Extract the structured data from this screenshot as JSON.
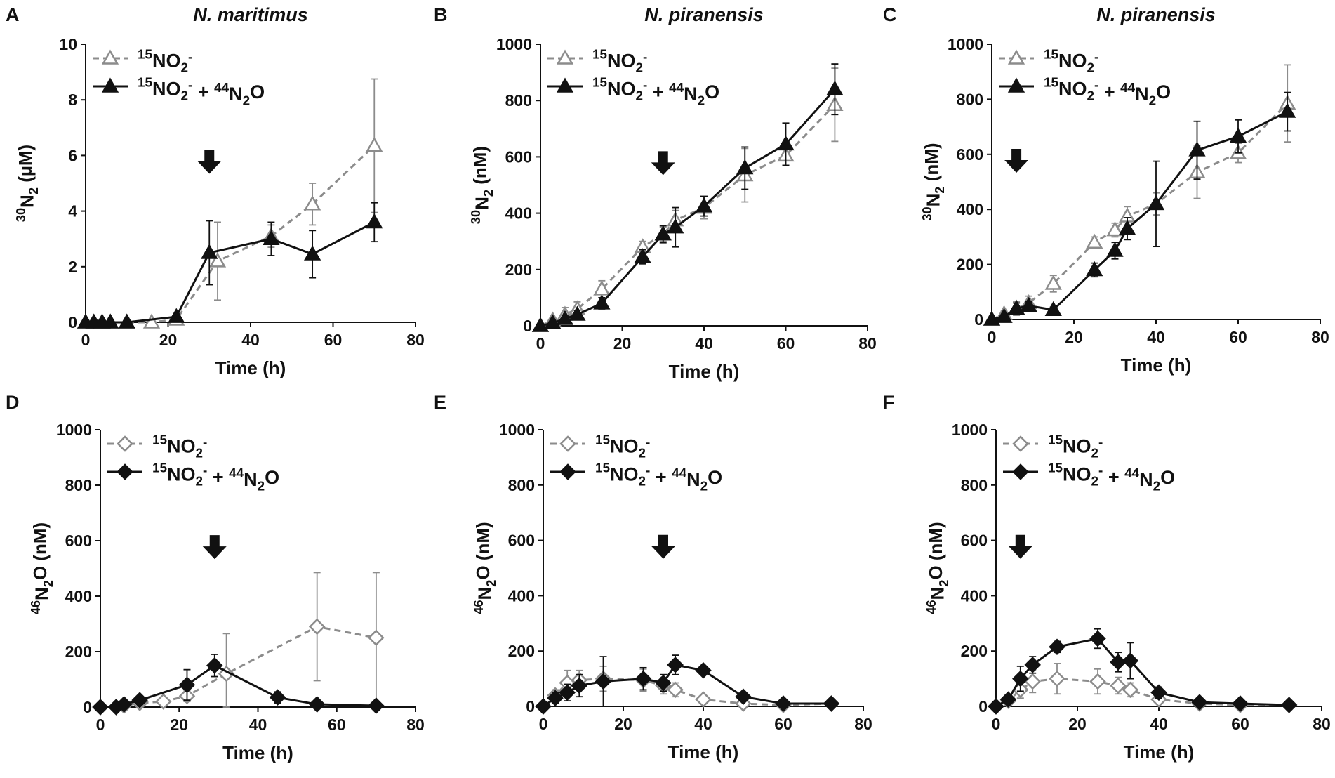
{
  "colors": {
    "control_series": "#8c8c8c",
    "treatment_series": "#111111",
    "axis": "#111111",
    "background": "#ffffff"
  },
  "legend_labels": {
    "control": "15NO2-",
    "treatment": "15NO2- + 44N2O"
  },
  "chart_data": [
    {
      "panel": "A",
      "title": "N. maritimus",
      "type": "line",
      "xlabel": "Time (h)",
      "ylabel": "30N2 (µM)",
      "xlim": [
        0,
        80
      ],
      "ylim": [
        0,
        10
      ],
      "xticks": [
        0,
        20,
        40,
        60,
        80
      ],
      "yticks": [
        0,
        2,
        4,
        6,
        8,
        10
      ],
      "marker": "triangle",
      "arrow_at": 30,
      "series": [
        {
          "name": "15NO2-",
          "x": [
            0,
            2,
            4,
            6,
            10,
            16,
            22,
            32,
            45,
            55,
            70
          ],
          "y": [
            0,
            0,
            0,
            0,
            0,
            0,
            0.1,
            2.2,
            3.1,
            4.25,
            6.35
          ],
          "err": [
            0,
            0,
            0,
            0,
            0,
            0.05,
            0.1,
            1.4,
            0.4,
            0.75,
            2.4
          ]
        },
        {
          "name": "15NO2- + 44N2O",
          "x": [
            0,
            2,
            4,
            6,
            10,
            22,
            30,
            45,
            55,
            70
          ],
          "y": [
            0,
            0,
            0,
            0,
            0,
            0.2,
            2.5,
            3.0,
            2.45,
            3.6
          ],
          "err": [
            0,
            0,
            0,
            0,
            0,
            0.1,
            1.15,
            0.6,
            0.85,
            0.7
          ]
        }
      ]
    },
    {
      "panel": "B",
      "title": "N. piranensis",
      "type": "line",
      "xlabel": "Time (h)",
      "ylabel": "30N2 (nM)",
      "xlim": [
        0,
        80
      ],
      "ylim": [
        0,
        1000
      ],
      "xticks": [
        0,
        20,
        40,
        60,
        80
      ],
      "yticks": [
        0,
        200,
        400,
        600,
        800,
        1000
      ],
      "marker": "triangle",
      "arrow_at": 30,
      "series": [
        {
          "name": "15NO2-",
          "x": [
            0,
            3,
            6,
            9,
            15,
            25,
            30,
            33,
            40,
            50,
            60,
            72
          ],
          "y": [
            0,
            20,
            40,
            60,
            130,
            280,
            325,
            375,
            420,
            535,
            605,
            785
          ],
          "err": [
            0,
            10,
            25,
            25,
            30,
            20,
            25,
            35,
            40,
            95,
            35,
            130
          ]
        },
        {
          "name": "15NO2- + 44N2O",
          "x": [
            0,
            3,
            6,
            9,
            15,
            25,
            30,
            33,
            40,
            50,
            60,
            72
          ],
          "y": [
            0,
            10,
            25,
            40,
            80,
            245,
            325,
            350,
            425,
            560,
            645,
            840
          ],
          "err": [
            0,
            5,
            10,
            15,
            20,
            25,
            30,
            70,
            35,
            75,
            75,
            90
          ]
        }
      ]
    },
    {
      "panel": "C",
      "title": "N. piranensis",
      "type": "line",
      "xlabel": "Time (h)",
      "ylabel": "30N2 (nM)",
      "xlim": [
        0,
        80
      ],
      "ylim": [
        0,
        1000
      ],
      "xticks": [
        0,
        20,
        40,
        60,
        80
      ],
      "yticks": [
        0,
        200,
        400,
        600,
        800,
        1000
      ],
      "marker": "triangle",
      "arrow_at": 6,
      "series": [
        {
          "name": "15NO2-",
          "x": [
            0,
            3,
            6,
            9,
            15,
            25,
            30,
            33,
            40,
            50,
            60,
            72
          ],
          "y": [
            0,
            20,
            40,
            60,
            130,
            280,
            325,
            375,
            420,
            535,
            605,
            785
          ],
          "err": [
            0,
            10,
            25,
            25,
            30,
            20,
            25,
            35,
            40,
            95,
            35,
            140
          ]
        },
        {
          "name": "15NO2- + 44N2O",
          "x": [
            0,
            3,
            6,
            9,
            15,
            25,
            30,
            33,
            40,
            50,
            60,
            72
          ],
          "y": [
            0,
            10,
            40,
            50,
            35,
            180,
            250,
            330,
            420,
            615,
            665,
            755
          ],
          "err": [
            0,
            5,
            20,
            15,
            10,
            25,
            30,
            40,
            155,
            105,
            60,
            70
          ]
        }
      ]
    },
    {
      "panel": "D",
      "title": "",
      "type": "line",
      "xlabel": "Time (h)",
      "ylabel": "46N2O (nM)",
      "xlim": [
        0,
        80
      ],
      "ylim": [
        0,
        1000
      ],
      "xticks": [
        0,
        20,
        40,
        60,
        80
      ],
      "yticks": [
        0,
        200,
        400,
        600,
        800,
        1000
      ],
      "marker": "diamond",
      "arrow_at": 29,
      "series": [
        {
          "name": "15NO2-",
          "x": [
            0,
            4,
            6,
            10,
            16,
            22,
            32,
            55,
            70
          ],
          "y": [
            0,
            0,
            5,
            15,
            20,
            40,
            120,
            290,
            250
          ],
          "err": [
            0,
            0,
            0,
            0,
            5,
            20,
            145,
            195,
            235
          ]
        },
        {
          "name": "15NO2- + 44N2O",
          "x": [
            0,
            4,
            6,
            10,
            22,
            29,
            45,
            55,
            70
          ],
          "y": [
            0,
            0,
            10,
            25,
            80,
            150,
            35,
            10,
            5
          ],
          "err": [
            0,
            0,
            0,
            5,
            55,
            40,
            20,
            5,
            0
          ]
        }
      ]
    },
    {
      "panel": "E",
      "title": "",
      "type": "line",
      "xlabel": "Time (h)",
      "ylabel": "46N2O (nM)",
      "xlim": [
        0,
        80
      ],
      "ylim": [
        0,
        1000
      ],
      "xticks": [
        0,
        20,
        40,
        60,
        80
      ],
      "yticks": [
        0,
        200,
        400,
        600,
        800,
        1000
      ],
      "marker": "diamond",
      "arrow_at": 30,
      "series": [
        {
          "name": "15NO2-",
          "x": [
            0,
            3,
            6,
            9,
            15,
            25,
            30,
            33,
            40,
            50,
            60,
            72
          ],
          "y": [
            0,
            40,
            85,
            95,
            100,
            95,
            75,
            60,
            25,
            10,
            5,
            10
          ],
          "err": [
            0,
            20,
            45,
            35,
            45,
            40,
            30,
            25,
            10,
            5,
            0,
            0
          ]
        },
        {
          "name": "15NO2- + 44N2O",
          "x": [
            0,
            3,
            6,
            9,
            15,
            25,
            30,
            33,
            40,
            50,
            60,
            72
          ],
          "y": [
            0,
            30,
            50,
            75,
            90,
            100,
            85,
            150,
            130,
            35,
            10,
            10
          ],
          "err": [
            0,
            20,
            30,
            40,
            90,
            40,
            30,
            35,
            15,
            15,
            5,
            5
          ]
        }
      ]
    },
    {
      "panel": "F",
      "title": "",
      "type": "line",
      "xlabel": "Time (h)",
      "ylabel": "46N2O (nM)",
      "xlim": [
        0,
        80
      ],
      "ylim": [
        0,
        1000
      ],
      "xticks": [
        0,
        20,
        40,
        60,
        80
      ],
      "yticks": [
        0,
        200,
        400,
        600,
        800,
        1000
      ],
      "marker": "diamond",
      "arrow_at": 6,
      "series": [
        {
          "name": "15NO2-",
          "x": [
            0,
            3,
            6,
            9,
            15,
            25,
            30,
            33,
            40,
            50,
            60,
            72
          ],
          "y": [
            0,
            20,
            60,
            90,
            100,
            90,
            75,
            60,
            25,
            10,
            5,
            5
          ],
          "err": [
            0,
            10,
            30,
            40,
            55,
            45,
            30,
            25,
            10,
            5,
            0,
            0
          ]
        },
        {
          "name": "15NO2- + 44N2O",
          "x": [
            0,
            3,
            6,
            9,
            15,
            25,
            30,
            33,
            40,
            50,
            60,
            72
          ],
          "y": [
            0,
            25,
            100,
            150,
            215,
            245,
            160,
            165,
            50,
            15,
            10,
            5
          ],
          "err": [
            0,
            10,
            45,
            30,
            20,
            35,
            35,
            65,
            20,
            5,
            5,
            0
          ]
        }
      ]
    }
  ]
}
